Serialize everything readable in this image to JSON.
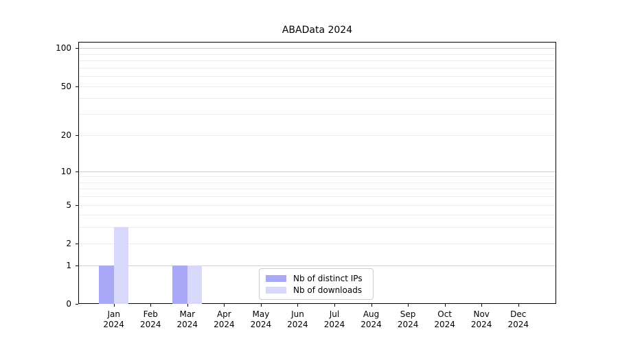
{
  "chart_data": {
    "type": "bar",
    "title": "ABAData 2024",
    "xlabel": "",
    "ylabel": "",
    "year_label": "2024",
    "categories": [
      "Jan",
      "Feb",
      "Mar",
      "Apr",
      "May",
      "Jun",
      "Jul",
      "Aug",
      "Sep",
      "Oct",
      "Nov",
      "Dec"
    ],
    "series": [
      {
        "name": "Nb of distinct IPs",
        "slug": "distinct-ips",
        "color": "#a8a8f7",
        "values": [
          1,
          0,
          1,
          0,
          0,
          0,
          0,
          0,
          0,
          0,
          0,
          0
        ]
      },
      {
        "name": "Nb of downloads",
        "slug": "downloads",
        "color": "#d8d8fa",
        "values": [
          3,
          0,
          1,
          0,
          0,
          0,
          0,
          0,
          0,
          0,
          0,
          0
        ]
      }
    ],
    "yscale": "log1p",
    "ylim": [
      0,
      112.6
    ],
    "yticks": [
      0,
      1,
      2,
      5,
      10,
      20,
      50,
      100
    ],
    "major_gridlines": [
      1,
      10,
      100
    ],
    "minor_gridlines": [
      2,
      3,
      4,
      5,
      6,
      7,
      8,
      9,
      20,
      30,
      40,
      50,
      60,
      70,
      80,
      90
    ],
    "grid": true,
    "legend_position": "lower center"
  },
  "colors": {
    "axis": "#000000",
    "grid_major": "#cfcfcf",
    "grid_minor": "#ececec",
    "background": "#ffffff"
  }
}
